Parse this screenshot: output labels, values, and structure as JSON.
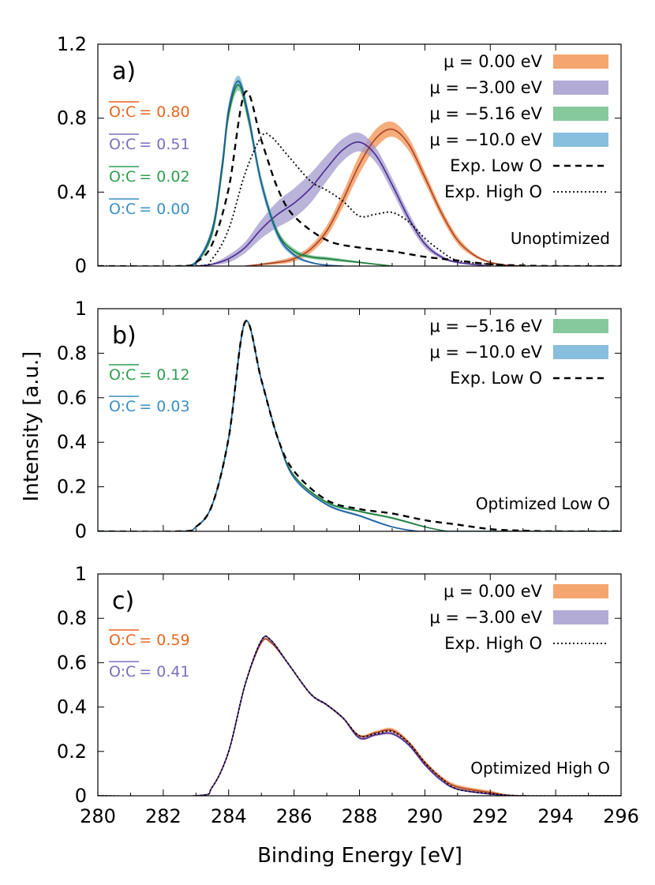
{
  "figure": {
    "xlabel": "Binding Energy [eV]",
    "ylabel": "Intensity [a.u.]"
  },
  "colors": {
    "mu_0": "#f28e4a",
    "mu_3": "#9f96cc",
    "mu_516": "#66bb84",
    "mu_10": "#6aaed6",
    "line_mu_0": "#a9442a",
    "line_mu_3": "#4b2a8f",
    "line_mu_516": "#1f7a3d",
    "line_mu_10": "#1f5fa0",
    "text_mu_0": "#e8661f",
    "text_mu_3": "#7b6fbd",
    "text_mu_516": "#2e9e4f",
    "text_mu_10": "#3a8fc4"
  },
  "chart_data": [
    {
      "type": "line",
      "panel": "a)",
      "annotation": "Unoptimized",
      "xlim": [
        280,
        296
      ],
      "ylim": [
        0,
        1.2
      ],
      "xticks": [
        "280",
        "282",
        "284",
        "286",
        "288",
        "290",
        "292",
        "294",
        "296"
      ],
      "yticks": [
        "0",
        "0.4",
        "0.8",
        "1.2"
      ],
      "ratio_labels": [
        {
          "label": "O:C",
          "value": "= 0.80",
          "color_key": "text_mu_0"
        },
        {
          "label": "O:C",
          "value": "= 0.51",
          "color_key": "text_mu_3"
        },
        {
          "label": "O:C",
          "value": "= 0.02",
          "color_key": "text_mu_516"
        },
        {
          "label": "O:C",
          "value": "= 0.00",
          "color_key": "text_mu_10"
        }
      ],
      "legend": [
        {
          "label": "μ =    0.00 eV",
          "kind": "band",
          "color_key": "mu_0"
        },
        {
          "label": "μ = −3.00 eV",
          "kind": "band",
          "color_key": "mu_3"
        },
        {
          "label": "μ = −5.16 eV",
          "kind": "band",
          "color_key": "mu_516"
        },
        {
          "label": "μ = −10.0 eV",
          "kind": "band",
          "color_key": "mu_10"
        },
        {
          "label": "Exp. Low O",
          "kind": "dashed"
        },
        {
          "label": "Exp. High O",
          "kind": "dotted"
        }
      ],
      "series": [
        {
          "name": "μ = 0.00 eV",
          "kind": "band",
          "color_key": "mu_0",
          "line_key": "line_mu_0",
          "x": [
            284.5,
            285.5,
            286.0,
            286.5,
            287.0,
            287.5,
            288.0,
            288.5,
            289.0,
            289.5,
            290.0,
            290.5,
            291.0,
            291.5,
            292.0,
            292.5,
            293.0
          ],
          "y": [
            0.0,
            0.02,
            0.04,
            0.09,
            0.19,
            0.36,
            0.55,
            0.69,
            0.74,
            0.66,
            0.48,
            0.29,
            0.14,
            0.06,
            0.02,
            0.005,
            0.0
          ],
          "band": [
            0.0,
            0.01,
            0.015,
            0.02,
            0.03,
            0.04,
            0.05,
            0.05,
            0.04,
            0.035,
            0.03,
            0.025,
            0.02,
            0.01,
            0.005,
            0.002,
            0.0
          ]
        },
        {
          "name": "μ = −3.00 eV",
          "kind": "band",
          "color_key": "mu_3",
          "line_key": "line_mu_3",
          "x": [
            283.0,
            283.5,
            284.0,
            284.5,
            285.0,
            285.5,
            286.0,
            286.5,
            287.0,
            287.5,
            288.0,
            288.5,
            289.0,
            289.5,
            290.0,
            290.5,
            291.0,
            292.0
          ],
          "y": [
            0.0,
            0.01,
            0.04,
            0.1,
            0.2,
            0.28,
            0.34,
            0.42,
            0.53,
            0.63,
            0.67,
            0.6,
            0.44,
            0.26,
            0.12,
            0.05,
            0.02,
            0.0
          ],
          "band": [
            0.0,
            0.005,
            0.02,
            0.03,
            0.05,
            0.07,
            0.08,
            0.08,
            0.07,
            0.06,
            0.05,
            0.04,
            0.035,
            0.03,
            0.02,
            0.01,
            0.005,
            0.0
          ]
        },
        {
          "name": "μ = −5.16 eV",
          "kind": "band",
          "color_key": "mu_516",
          "line_key": "line_mu_516",
          "x": [
            282.5,
            283.0,
            283.5,
            283.8,
            284.0,
            284.3,
            284.6,
            285.0,
            285.5,
            286.0,
            286.5,
            287.0,
            287.5,
            288.0,
            288.5,
            289.0
          ],
          "y": [
            0.0,
            0.02,
            0.18,
            0.52,
            0.82,
            0.98,
            0.8,
            0.45,
            0.18,
            0.08,
            0.05,
            0.04,
            0.03,
            0.02,
            0.01,
            0.0
          ],
          "band": [
            0.0,
            0.01,
            0.02,
            0.03,
            0.03,
            0.03,
            0.03,
            0.03,
            0.02,
            0.015,
            0.01,
            0.01,
            0.008,
            0.005,
            0.003,
            0.0
          ]
        },
        {
          "name": "μ = −10.0 eV",
          "kind": "band",
          "color_key": "mu_10",
          "line_key": "line_mu_10",
          "x": [
            282.5,
            283.0,
            283.5,
            283.8,
            284.0,
            284.3,
            284.6,
            285.0,
            285.5,
            286.0,
            286.5,
            287.0,
            287.5
          ],
          "y": [
            0.0,
            0.02,
            0.2,
            0.55,
            0.85,
            1.0,
            0.82,
            0.45,
            0.17,
            0.06,
            0.02,
            0.005,
            0.0
          ],
          "band": [
            0.0,
            0.01,
            0.02,
            0.03,
            0.03,
            0.03,
            0.03,
            0.03,
            0.02,
            0.01,
            0.005,
            0.002,
            0.0
          ]
        },
        {
          "name": "Exp. Low O",
          "kind": "dashed",
          "x": [
            280.0,
            282.5,
            283.0,
            283.5,
            284.0,
            284.5,
            285.0,
            285.5,
            286.0,
            287.0,
            288.0,
            289.0,
            290.0,
            291.0,
            292.0,
            293.0,
            294.0,
            296.0
          ],
          "y": [
            0.0,
            0.0,
            0.02,
            0.12,
            0.42,
            0.94,
            0.68,
            0.42,
            0.27,
            0.14,
            0.1,
            0.08,
            0.05,
            0.03,
            0.01,
            0.003,
            0.0,
            0.0
          ]
        },
        {
          "name": "Exp. High O",
          "kind": "dotted",
          "x": [
            280.0,
            283.0,
            283.5,
            284.0,
            284.5,
            285.0,
            285.3,
            285.8,
            286.5,
            287.0,
            287.5,
            288.0,
            288.5,
            289.0,
            289.5,
            290.0,
            290.5,
            291.0,
            292.0,
            293.0,
            296.0
          ],
          "y": [
            0.0,
            0.0,
            0.04,
            0.2,
            0.5,
            0.7,
            0.7,
            0.6,
            0.46,
            0.41,
            0.35,
            0.27,
            0.28,
            0.29,
            0.24,
            0.15,
            0.08,
            0.03,
            0.01,
            0.0,
            0.0
          ]
        }
      ]
    },
    {
      "type": "line",
      "panel": "b)",
      "annotation": "Optimized Low O",
      "xlim": [
        280,
        296
      ],
      "ylim": [
        0,
        1.0
      ],
      "xticks": [
        "280",
        "282",
        "284",
        "286",
        "288",
        "290",
        "292",
        "294",
        "296"
      ],
      "yticks": [
        "0",
        "0.2",
        "0.4",
        "0.6",
        "0.8",
        "1"
      ],
      "ratio_labels": [
        {
          "label": "O:C",
          "value": "= 0.12",
          "color_key": "text_mu_516"
        },
        {
          "label": "O:C",
          "value": "= 0.03",
          "color_key": "text_mu_10"
        }
      ],
      "legend": [
        {
          "label": "μ = −5.16 eV",
          "kind": "band",
          "color_key": "mu_516"
        },
        {
          "label": "μ = −10.0 eV",
          "kind": "band",
          "color_key": "mu_10"
        },
        {
          "label": "Exp. Low O",
          "kind": "dashed"
        }
      ],
      "series": [
        {
          "name": "μ = −5.16 eV",
          "kind": "band",
          "color_key": "mu_516",
          "line_key": "line_mu_516",
          "x": [
            280.0,
            282.5,
            283.0,
            283.5,
            284.0,
            284.5,
            285.0,
            285.5,
            286.0,
            287.0,
            288.0,
            289.0,
            290.0,
            290.7,
            291.0,
            296.0
          ],
          "y": [
            0.0,
            0.0,
            0.02,
            0.12,
            0.42,
            0.94,
            0.68,
            0.42,
            0.25,
            0.13,
            0.09,
            0.06,
            0.02,
            0.0,
            0.0,
            0.0
          ],
          "band": [
            0,
            0,
            0.003,
            0.005,
            0.005,
            0.005,
            0.005,
            0.005,
            0.005,
            0.005,
            0.005,
            0.005,
            0.003,
            0,
            0,
            0
          ]
        },
        {
          "name": "μ = −10.0 eV",
          "kind": "band",
          "color_key": "mu_10",
          "line_key": "line_mu_10",
          "x": [
            280.0,
            282.5,
            283.0,
            283.5,
            284.0,
            284.5,
            285.0,
            285.5,
            286.0,
            287.0,
            288.0,
            289.0,
            289.8,
            290.0,
            296.0
          ],
          "y": [
            0.0,
            0.0,
            0.02,
            0.12,
            0.42,
            0.94,
            0.68,
            0.42,
            0.24,
            0.12,
            0.07,
            0.02,
            0.0,
            0.0,
            0.0
          ],
          "band": [
            0,
            0,
            0.003,
            0.005,
            0.005,
            0.005,
            0.005,
            0.005,
            0.005,
            0.005,
            0.005,
            0.003,
            0,
            0,
            0
          ]
        },
        {
          "name": "Exp. Low O",
          "kind": "dashed",
          "x": [
            280.0,
            282.5,
            283.0,
            283.5,
            284.0,
            284.5,
            285.0,
            285.5,
            286.0,
            287.0,
            288.0,
            289.0,
            290.0,
            291.0,
            292.0,
            293.0,
            294.0,
            296.0
          ],
          "y": [
            0.0,
            0.0,
            0.02,
            0.12,
            0.42,
            0.94,
            0.68,
            0.42,
            0.27,
            0.14,
            0.1,
            0.08,
            0.05,
            0.03,
            0.01,
            0.003,
            0.0,
            0.0
          ]
        }
      ]
    },
    {
      "type": "line",
      "panel": "c)",
      "annotation": "Optimized High O",
      "xlim": [
        280,
        296
      ],
      "ylim": [
        0,
        1.0
      ],
      "xticks": [
        "280",
        "282",
        "284",
        "286",
        "288",
        "290",
        "292",
        "294",
        "296"
      ],
      "yticks": [
        "0",
        "0.2",
        "0.4",
        "0.6",
        "0.8",
        "1"
      ],
      "ratio_labels": [
        {
          "label": "O:C",
          "value": "= 0.59",
          "color_key": "text_mu_0"
        },
        {
          "label": "O:C",
          "value": "= 0.41",
          "color_key": "text_mu_3"
        }
      ],
      "legend": [
        {
          "label": "μ =    0.00 eV",
          "kind": "band",
          "color_key": "mu_0"
        },
        {
          "label": "μ = −3.00 eV",
          "kind": "band",
          "color_key": "mu_3"
        },
        {
          "label": "Exp. High O",
          "kind": "dotted"
        }
      ],
      "series": [
        {
          "name": "μ = 0.00 eV",
          "kind": "band",
          "color_key": "mu_0",
          "line_key": "line_mu_0",
          "x": [
            280.0,
            283.0,
            283.5,
            284.0,
            284.5,
            285.0,
            285.3,
            285.8,
            286.5,
            287.0,
            287.5,
            288.0,
            288.5,
            289.0,
            289.5,
            290.0,
            290.5,
            291.0,
            292.0,
            293.0,
            296.0
          ],
          "y": [
            0.0,
            0.0,
            0.04,
            0.2,
            0.5,
            0.69,
            0.69,
            0.6,
            0.46,
            0.41,
            0.35,
            0.27,
            0.285,
            0.295,
            0.24,
            0.15,
            0.08,
            0.04,
            0.015,
            0.0,
            0.0
          ],
          "band": [
            0,
            0,
            0.003,
            0.005,
            0.005,
            0.005,
            0.005,
            0.005,
            0.005,
            0.005,
            0.005,
            0.006,
            0.008,
            0.01,
            0.01,
            0.01,
            0.01,
            0.01,
            0.008,
            0,
            0
          ]
        },
        {
          "name": "μ = −3.00 eV",
          "kind": "band",
          "color_key": "mu_3",
          "line_key": "line_mu_3",
          "x": [
            280.0,
            283.0,
            283.5,
            284.0,
            284.5,
            285.0,
            285.3,
            285.8,
            286.5,
            287.0,
            287.5,
            288.0,
            288.5,
            289.0,
            289.5,
            290.0,
            290.5,
            291.0,
            292.0,
            293.0,
            296.0
          ],
          "y": [
            0.0,
            0.0,
            0.04,
            0.2,
            0.5,
            0.7,
            0.7,
            0.6,
            0.46,
            0.41,
            0.35,
            0.26,
            0.275,
            0.28,
            0.23,
            0.14,
            0.07,
            0.03,
            0.008,
            0.0,
            0.0
          ],
          "band": [
            0,
            0,
            0.003,
            0.005,
            0.005,
            0.005,
            0.005,
            0.005,
            0.005,
            0.005,
            0.005,
            0.005,
            0.006,
            0.006,
            0.006,
            0.006,
            0.005,
            0.004,
            0.003,
            0,
            0
          ]
        },
        {
          "name": "Exp. High O",
          "kind": "dotted",
          "x": [
            280.0,
            283.0,
            283.5,
            284.0,
            284.5,
            285.0,
            285.3,
            285.8,
            286.5,
            287.0,
            287.5,
            288.0,
            288.5,
            289.0,
            289.5,
            290.0,
            290.5,
            291.0,
            292.0,
            293.0,
            296.0
          ],
          "y": [
            0.0,
            0.0,
            0.04,
            0.2,
            0.5,
            0.7,
            0.7,
            0.6,
            0.46,
            0.41,
            0.35,
            0.27,
            0.28,
            0.29,
            0.24,
            0.15,
            0.08,
            0.03,
            0.01,
            0.0,
            0.0
          ]
        }
      ]
    }
  ]
}
